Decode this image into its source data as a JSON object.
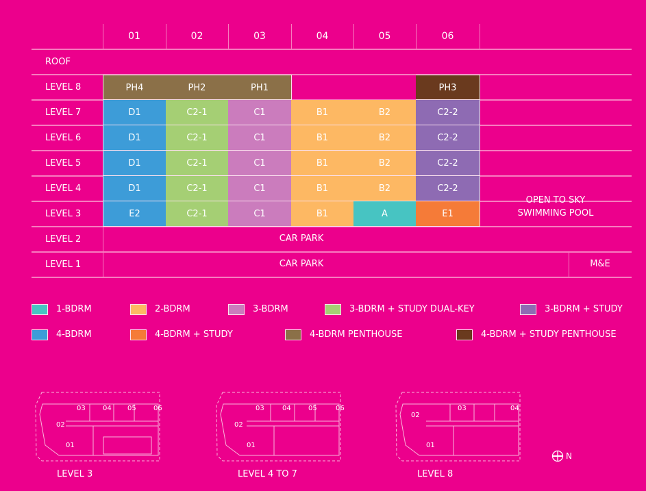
{
  "columns": [
    "01",
    "02",
    "03",
    "04",
    "05",
    "06"
  ],
  "rows": [
    {
      "label": "ROOF",
      "cells": []
    },
    {
      "label": "LEVEL 8",
      "cells": [
        {
          "text": "PH4",
          "type": "ph"
        },
        {
          "text": "PH2",
          "type": "ph"
        },
        {
          "text": "PH1",
          "type": "ph"
        },
        null,
        null,
        {
          "text": "PH3",
          "type": "phs"
        }
      ]
    },
    {
      "label": "LEVEL 7",
      "cells": [
        {
          "text": "D1",
          "type": "b4"
        },
        {
          "text": "C2-1",
          "type": "b3dk"
        },
        {
          "text": "C1",
          "type": "b3"
        },
        {
          "text": "B1",
          "type": "b2"
        },
        {
          "text": "B2",
          "type": "b2"
        },
        {
          "text": "C2-2",
          "type": "b3s"
        }
      ]
    },
    {
      "label": "LEVEL 6",
      "cells": [
        {
          "text": "D1",
          "type": "b4"
        },
        {
          "text": "C2-1",
          "type": "b3dk"
        },
        {
          "text": "C1",
          "type": "b3"
        },
        {
          "text": "B1",
          "type": "b2"
        },
        {
          "text": "B2",
          "type": "b2"
        },
        {
          "text": "C2-2",
          "type": "b3s"
        }
      ]
    },
    {
      "label": "LEVEL 5",
      "cells": [
        {
          "text": "D1",
          "type": "b4"
        },
        {
          "text": "C2-1",
          "type": "b3dk"
        },
        {
          "text": "C1",
          "type": "b3"
        },
        {
          "text": "B1",
          "type": "b2"
        },
        {
          "text": "B2",
          "type": "b2"
        },
        {
          "text": "C2-2",
          "type": "b3s"
        }
      ]
    },
    {
      "label": "LEVEL 4",
      "cells": [
        {
          "text": "D1",
          "type": "b4"
        },
        {
          "text": "C2-1",
          "type": "b3dk"
        },
        {
          "text": "C1",
          "type": "b3"
        },
        {
          "text": "B1",
          "type": "b2"
        },
        {
          "text": "B2",
          "type": "b2"
        },
        {
          "text": "C2-2",
          "type": "b3s"
        }
      ]
    },
    {
      "label": "LEVEL 3",
      "cells": [
        {
          "text": "E2",
          "type": "b4"
        },
        {
          "text": "C2-1",
          "type": "b3dk"
        },
        {
          "text": "C1",
          "type": "b3"
        },
        {
          "text": "B1",
          "type": "b2"
        },
        {
          "text": "A",
          "type": "b1"
        },
        {
          "text": "E1",
          "type": "b4s"
        }
      ]
    },
    {
      "label": "LEVEL 2",
      "cells": []
    },
    {
      "label": "LEVEL 1",
      "cells": []
    }
  ],
  "spans": {
    "pool_line1": "OPEN TO SKY",
    "pool_line2": "SWIMMING POOL",
    "car_park_l2": "CAR PARK",
    "car_park_l1": "CAR PARK",
    "me": "M&E"
  },
  "colors": {
    "background": "#EC008C",
    "b1": "#47C4C2",
    "b2": "#FDB863",
    "b3": "#CB7CBD",
    "b3dk": "#A5CF74",
    "b3s": "#8E6BB3",
    "b4": "#3D9CD8",
    "b4s": "#F57B38",
    "ph": "#8B7048",
    "phs": "#6A3A1E"
  },
  "legend": [
    {
      "type": "b1",
      "label": "1-BDRM"
    },
    {
      "type": "b2",
      "label": "2-BDRM"
    },
    {
      "type": "b3",
      "label": "3-BDRM"
    },
    {
      "type": "b3dk",
      "label": "3-BDRM + STUDY DUAL-KEY"
    },
    {
      "type": "b3s",
      "label": "3-BDRM + STUDY"
    },
    {
      "type": "b4",
      "label": "4-BDRM"
    },
    {
      "type": "b4s",
      "label": "4-BDRM + STUDY"
    },
    {
      "type": "ph",
      "label": "4-BDRM PENTHOUSE"
    },
    {
      "type": "phs",
      "label": "4-BDRM + STUDY PENTHOUSE"
    }
  ],
  "plans": [
    {
      "title": "LEVEL 3",
      "units": [
        "01",
        "02",
        "03",
        "04",
        "05",
        "06"
      ]
    },
    {
      "title": "LEVEL 4 TO 7",
      "units": [
        "01",
        "02",
        "03",
        "04",
        "05",
        "06"
      ]
    },
    {
      "title": "LEVEL 8",
      "units": [
        "01",
        "02",
        "03",
        "04"
      ]
    }
  ],
  "north_label": "N"
}
